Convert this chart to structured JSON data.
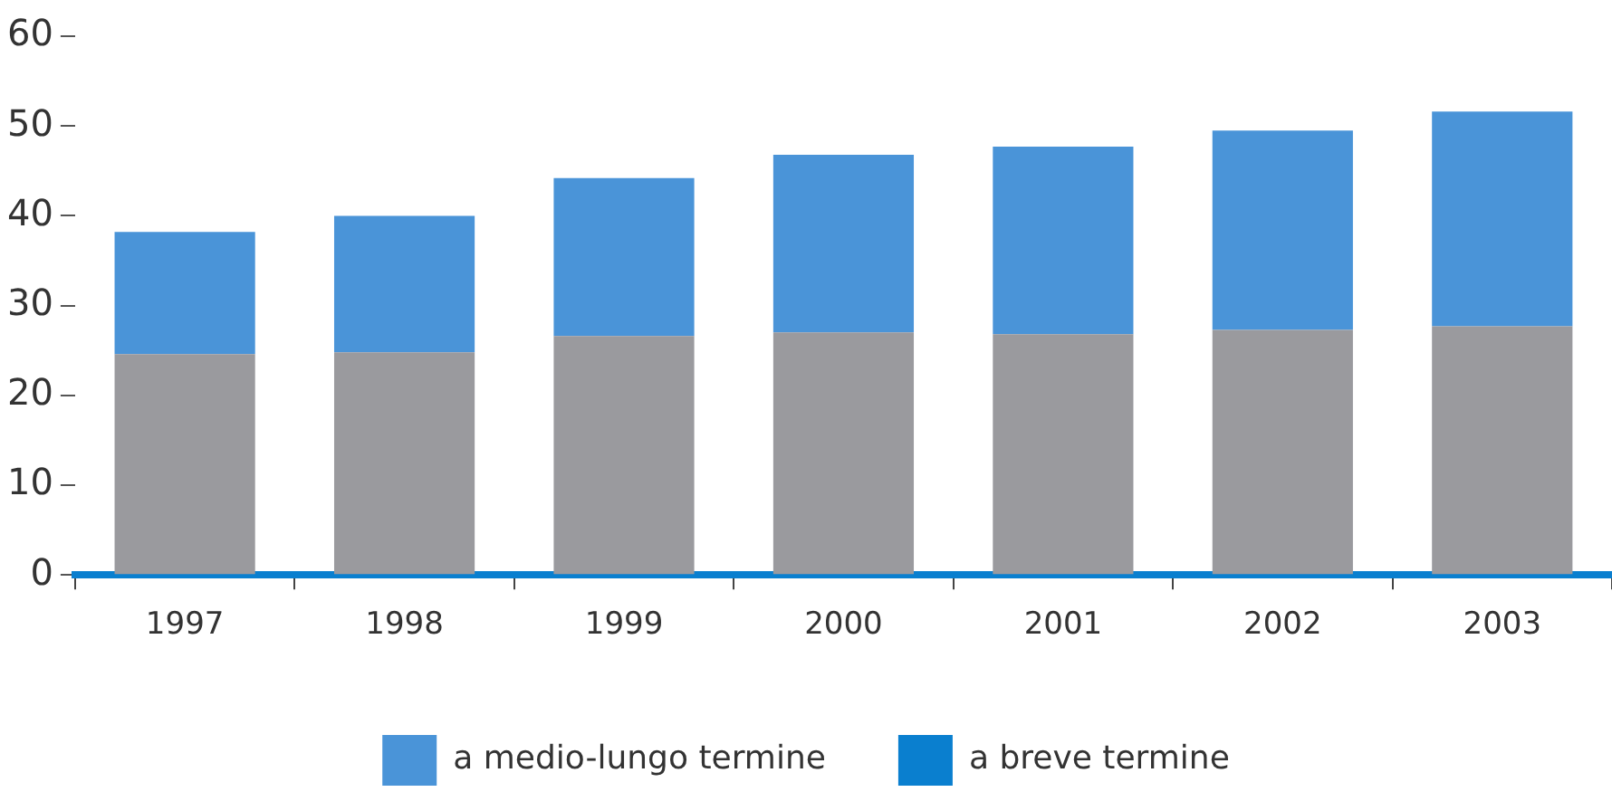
{
  "chart_data": {
    "type": "bar",
    "stacked": true,
    "categories": [
      "1997",
      "1998",
      "1999",
      "2000",
      "2001",
      "2002",
      "2003"
    ],
    "series": [
      {
        "color": "#9a9a9e",
        "values": [
          24.6,
          24.8,
          26.6,
          27.0,
          26.8,
          27.3,
          27.7
        ]
      },
      {
        "name": "a medio-lungo termine",
        "color": "#4a94d8",
        "values": [
          13.6,
          15.2,
          17.6,
          19.8,
          20.9,
          22.2,
          23.9
        ]
      },
      {
        "name": "a breve termine",
        "color": "#0a7fcf",
        "values": [
          null,
          null,
          null,
          null,
          null,
          null,
          null
        ]
      }
    ],
    "ylim": [
      0,
      60
    ],
    "yticks": [
      0,
      10,
      20,
      30,
      40,
      50,
      60
    ],
    "grid": false,
    "legend": "bottom"
  }
}
